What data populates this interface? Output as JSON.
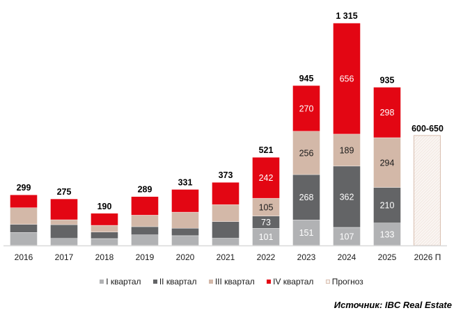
{
  "chart_data": {
    "type": "bar",
    "stacked": true,
    "title": "",
    "xlabel": "",
    "ylabel": "",
    "ylim": [
      0,
      1400
    ],
    "grid": false,
    "legend_position": "bottom",
    "categories": [
      "2016",
      "2017",
      "2018",
      "2019",
      "2020",
      "2021",
      "2022",
      "2023",
      "2024",
      "2025",
      "2026 П"
    ],
    "series": [
      {
        "name": "I квартал",
        "color": "#B1B2B4",
        "label_color": "#ffffff",
        "values": [
          77,
          42,
          41,
          63,
          58,
          43,
          101,
          151,
          107,
          133,
          null
        ],
        "labels_shown": [
          false,
          false,
          false,
          false,
          false,
          false,
          true,
          true,
          true,
          true,
          false
        ]
      },
      {
        "name": "II квартал",
        "color": "#636466",
        "label_color": "#ffffff",
        "values": [
          48,
          81,
          38,
          48,
          44,
          98,
          73,
          268,
          362,
          210,
          null
        ],
        "labels_shown": [
          false,
          false,
          false,
          false,
          false,
          false,
          true,
          true,
          true,
          true,
          false
        ]
      },
      {
        "name": "III квартал",
        "color": "#D3B8A8",
        "label_color": "#1a1a1a",
        "values": [
          98,
          29,
          40,
          68,
          95,
          100,
          105,
          256,
          189,
          294,
          null
        ],
        "labels_shown": [
          false,
          false,
          false,
          false,
          false,
          false,
          true,
          true,
          true,
          true,
          false
        ]
      },
      {
        "name": "IV квартал",
        "color": "#E30613",
        "label_color": "#ffffff",
        "values": [
          76,
          123,
          71,
          110,
          134,
          132,
          242,
          270,
          656,
          298,
          null
        ],
        "labels_shown": [
          false,
          false,
          false,
          false,
          false,
          false,
          true,
          true,
          true,
          true,
          false
        ]
      },
      {
        "name": "Прогноз",
        "color": "#F8F2EE",
        "border_color": "#D9BFB0",
        "hatched": true,
        "values": [
          null,
          null,
          null,
          null,
          null,
          null,
          null,
          null,
          null,
          null,
          650
        ],
        "range": [
          600,
          650
        ]
      }
    ],
    "totals": [
      299,
      275,
      190,
      289,
      331,
      373,
      521,
      945,
      1315,
      935,
      650
    ],
    "total_labels": [
      "299",
      "275",
      "190",
      "289",
      "331",
      "373",
      "521",
      "945",
      "1 315",
      "935",
      "600-650"
    ]
  },
  "legend": [
    {
      "label": "I квартал",
      "color": "#B1B2B4",
      "icon": "square-swatch"
    },
    {
      "label": "II квартал",
      "color": "#636466",
      "icon": "square-swatch"
    },
    {
      "label": "III квартал",
      "color": "#D3B8A8",
      "icon": "square-swatch"
    },
    {
      "label": "IV квартал",
      "color": "#E30613",
      "icon": "square-swatch"
    },
    {
      "label": "Прогноз",
      "color": "#F8F2EE",
      "border": "#D9BFB0",
      "icon": "outlined-square-swatch"
    }
  ],
  "source": "Источник: IBC Real Estate",
  "colors": {
    "axis": "#D9D9D9"
  }
}
